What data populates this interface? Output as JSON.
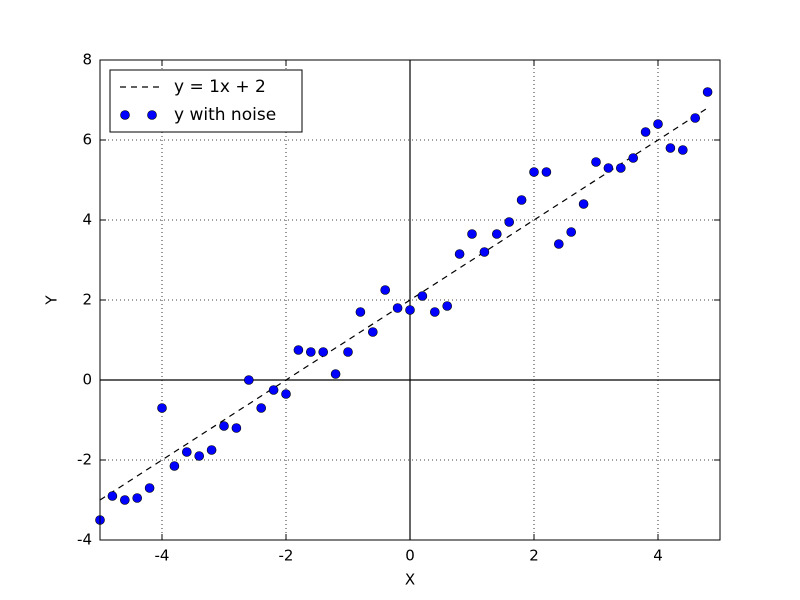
{
  "chart_data": {
    "type": "scatter",
    "xlabel": "X",
    "ylabel": "Y",
    "xlim": [
      -5,
      5
    ],
    "ylim": [
      -4,
      8
    ],
    "xticks": [
      -4,
      -2,
      0,
      2,
      4
    ],
    "yticks": [
      -4,
      -2,
      0,
      2,
      4,
      6,
      8
    ],
    "grid": true,
    "legend": "upper left",
    "series": [
      {
        "name": "y = 1x + 2",
        "type": "line",
        "color": "#000000",
        "x": [
          -5,
          4.8
        ],
        "values": [
          -3,
          6.8
        ]
      },
      {
        "name": "y with noise",
        "type": "scatter",
        "color": "#0000ff",
        "x": [
          -5,
          -4.8,
          -4.6,
          -4.4,
          -4.2,
          -4,
          -3.8,
          -3.6,
          -3.4,
          -3.2,
          -3,
          -2.8,
          -2.6,
          -2.4,
          -2.2,
          -2,
          -1.8,
          -1.6,
          -1.4,
          -1.2,
          -1,
          -0.8,
          -0.6,
          -0.4,
          -0.2,
          0,
          0.2,
          0.4,
          0.6,
          0.8,
          1,
          1.2,
          1.4,
          1.6,
          1.8,
          2,
          2.2,
          2.4,
          2.6,
          2.8,
          3,
          3.2,
          3.4,
          3.6,
          3.8,
          4,
          4.2,
          4.4,
          4.6,
          4.8
        ],
        "values": [
          -3.5,
          -2.9,
          -3.0,
          -2.95,
          -2.7,
          -0.7,
          -2.15,
          -1.8,
          -1.9,
          -1.75,
          -1.15,
          -1.2,
          0.0,
          -0.7,
          -0.25,
          -0.35,
          0.75,
          0.7,
          0.7,
          0.15,
          0.7,
          1.7,
          1.2,
          2.25,
          1.8,
          1.75,
          2.1,
          1.7,
          1.85,
          3.15,
          3.65,
          3.2,
          3.65,
          3.95,
          4.5,
          5.2,
          5.2,
          3.4,
          3.7,
          4.4,
          5.45,
          5.3,
          5.3,
          5.55,
          6.2,
          6.4,
          5.8,
          5.75,
          6.55,
          7.2
        ]
      }
    ]
  }
}
